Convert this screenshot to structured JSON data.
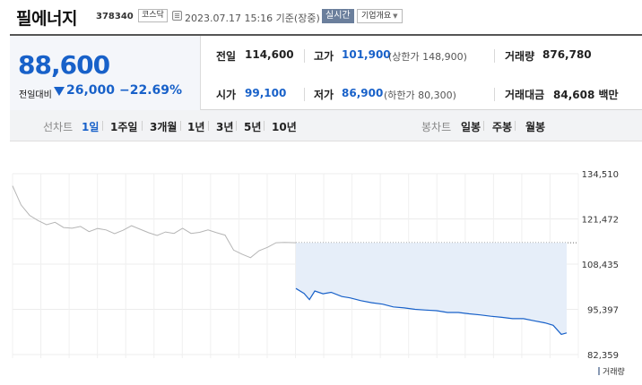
{
  "header": {
    "stock_name": "필에너지",
    "stock_code": "378340",
    "market": "코스닥",
    "datetime": "2023.07.17 15:16 기준(장중)",
    "realtime_badge": "실시간",
    "company_overview": "기업개요"
  },
  "summary": {
    "current_price": "88,600",
    "change_label": "전일대비",
    "change_value": "26,000",
    "change_rate": "−22.69%",
    "prev_close_label": "전일",
    "prev_close": "114,600",
    "high_label": "고가",
    "high": "101,900",
    "upper_limit": "(상한가 148,900)",
    "volume_label": "거래량",
    "volume": "876,780",
    "open_label": "시가",
    "open": "99,100",
    "low_label": "저가",
    "low": "86,900",
    "lower_limit": "(하한가 80,300)",
    "amount_label": "거래대금",
    "amount": "84,608 백만"
  },
  "tabs": {
    "line_chart_label": "선차트",
    "line_periods": [
      "1일",
      "1주일",
      "3개월",
      "1년",
      "3년",
      "5년",
      "10년"
    ],
    "active_period": "1일",
    "candle_chart_label": "봉차트",
    "candle_periods": [
      "일봉",
      "주봉",
      "월봉"
    ]
  },
  "colors": {
    "down": "#1861c9",
    "prev_line": "#b5b5b5",
    "shade": "#e6eef9"
  },
  "chart_data": {
    "type": "line",
    "y_ticks": [
      "134,510",
      "121,472",
      "108,435",
      "95,397",
      "82,359"
    ],
    "ylim": [
      82359,
      134510
    ],
    "legend": "거래량",
    "grid": true,
    "series": [
      {
        "name": "",
        "x": [
          0,
          0.03,
          0.06,
          0.09,
          0.12,
          0.15,
          0.18,
          0.21,
          0.24,
          0.27,
          0.3,
          0.33,
          0.36,
          0.39,
          0.42,
          0.45,
          0.48,
          0.51,
          0.54,
          0.57,
          0.6,
          0.63,
          0.66,
          0.69,
          0.72,
          0.75,
          0.78,
          0.81,
          0.84,
          0.87,
          0.9,
          0.93,
          0.96,
          1.0
        ],
        "y": [
          131000,
          125500,
          122500,
          121000,
          119800,
          120500,
          119000,
          118800,
          119300,
          117800,
          118700,
          118300,
          117200,
          118200,
          119500,
          118500,
          117500,
          116700,
          117700,
          117300,
          118800,
          117300,
          117600,
          118300,
          117500,
          116800,
          112500,
          111300,
          110300,
          112300,
          113300,
          114600,
          114700,
          114600
        ]
      },
      {
        "name": "",
        "x": [
          0,
          0.03,
          0.05,
          0.07,
          0.1,
          0.13,
          0.17,
          0.2,
          0.24,
          0.28,
          0.32,
          0.36,
          0.4,
          0.44,
          0.48,
          0.52,
          0.56,
          0.6,
          0.64,
          0.68,
          0.72,
          0.76,
          0.8,
          0.84,
          0.88,
          0.92,
          0.95,
          0.98,
          1.0
        ],
        "y": [
          101400,
          100000,
          98200,
          100700,
          99900,
          100300,
          99100,
          98700,
          97900,
          97300,
          96900,
          96100,
          95800,
          95400,
          95200,
          95000,
          94500,
          94500,
          94100,
          93800,
          93400,
          93100,
          92700,
          92700,
          92100,
          91500,
          90800,
          88200,
          88600
        ]
      }
    ]
  }
}
